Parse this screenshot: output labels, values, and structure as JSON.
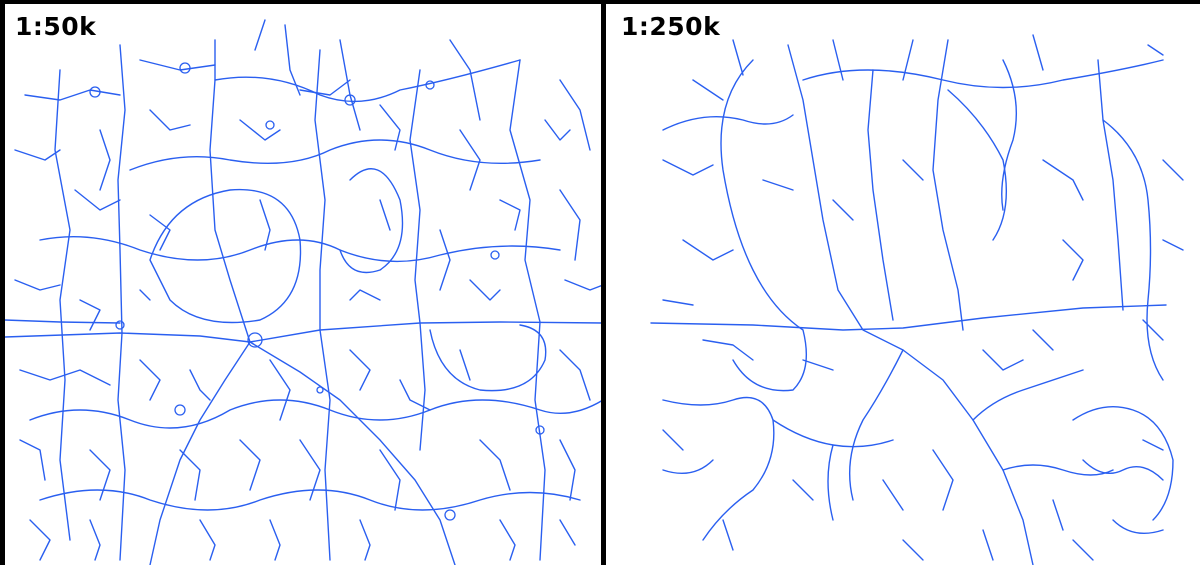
{
  "panels": [
    {
      "id": "detail-50k",
      "scale_label": "1:50k"
    },
    {
      "id": "detail-250k",
      "scale_label": "1:250k"
    }
  ],
  "colors": {
    "road": "#2a5ff0",
    "frame": "#000000",
    "background": "#ffffff"
  }
}
